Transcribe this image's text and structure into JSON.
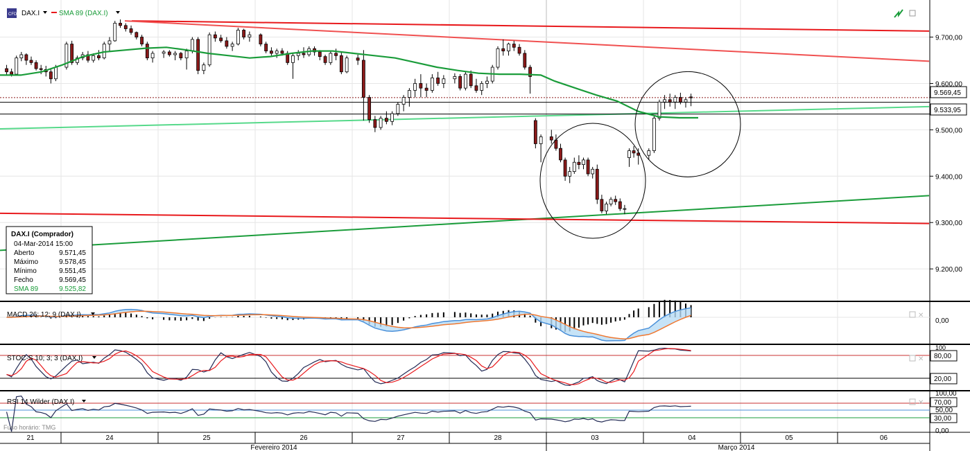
{
  "header": {
    "symbol": "DAX.I",
    "indicator": "SMA 89 (DAX.I)"
  },
  "price_panel": {
    "y_ticks": [
      "9.700,00",
      "9.600,00",
      "9.500,00",
      "9.400,00",
      "9.300,00",
      "9.200,00"
    ],
    "price_tag_current": "9.569,45",
    "price_tag_ref": "9.533,95"
  },
  "info_box": {
    "title": "DAX.I (Comprador)",
    "datetime": "04-Mar-2014 15:00",
    "rows": [
      {
        "label": "Aberto",
        "value": "9.571,45"
      },
      {
        "label": "Máximo",
        "value": "9.578,45"
      },
      {
        "label": "Mínimo",
        "value": "9.551,45"
      },
      {
        "label": "Fecho",
        "value": "9.569,45"
      },
      {
        "label": "SMA 89",
        "value": "9.525,82"
      }
    ],
    "sma_color": "#1a9c3a"
  },
  "macd_panel": {
    "label": "MACD 26; 12; 9 (DAX.I)",
    "tick": "0,00"
  },
  "stoch_panel": {
    "label": "STOC-S 10; 3; 3 (DAX.I)",
    "ticks": [
      "100",
      "80,00",
      "20,00"
    ]
  },
  "rsi_panel": {
    "label": "RSI 14 Wilder (DAX.I)",
    "ticks": [
      "100,00",
      "70,00",
      "50,00",
      "30,00",
      "0,00"
    ],
    "tz": "Fuso horário: TMG"
  },
  "x_axis": {
    "days": [
      "21",
      "24",
      "25",
      "26",
      "27",
      "28",
      "03",
      "04",
      "05",
      "06"
    ],
    "months": [
      "Fevereiro 2014",
      "Março 2014"
    ]
  },
  "colors": {
    "up": "#ffffff",
    "down": "#8b1a1a",
    "sma": "#1a9c3a",
    "res": "#e8191c",
    "sup": "#1a9c3a",
    "macd": "#4a90d9",
    "signal": "#f07830"
  },
  "chart_data": {
    "type": "candlestick",
    "symbol": "DAX.I",
    "ylim": [
      9130,
      9780
    ],
    "sessions": [
      "21",
      "24",
      "25",
      "26",
      "27",
      "28",
      "03",
      "04"
    ],
    "ohlc_hourly": [
      [
        9632,
        9640,
        9618,
        9625
      ],
      [
        9625,
        9632,
        9615,
        9620
      ],
      [
        9620,
        9660,
        9618,
        9655
      ],
      [
        9655,
        9668,
        9648,
        9662
      ],
      [
        9662,
        9665,
        9640,
        9650
      ],
      [
        9650,
        9658,
        9640,
        9645
      ],
      [
        9645,
        9650,
        9628,
        9632
      ],
      [
        9632,
        9640,
        9620,
        9630
      ],
      [
        9630,
        9638,
        9615,
        9625
      ],
      [
        9625,
        9630,
        9600,
        9610
      ],
      [
        9610,
        9640,
        9605,
        9635
      ],
      [
        9635,
        9690,
        9630,
        9685
      ],
      [
        9685,
        9692,
        9640,
        9645
      ],
      [
        9645,
        9660,
        9640,
        9655
      ],
      [
        9655,
        9668,
        9650,
        9662
      ],
      [
        9662,
        9670,
        9645,
        9650
      ],
      [
        9650,
        9665,
        9645,
        9660
      ],
      [
        9660,
        9672,
        9650,
        9655
      ],
      [
        9655,
        9690,
        9652,
        9685
      ],
      [
        9685,
        9700,
        9670,
        9692
      ],
      [
        9692,
        9735,
        9690,
        9730
      ],
      [
        9730,
        9738,
        9720,
        9725
      ],
      [
        9725,
        9730,
        9712,
        9718
      ],
      [
        9718,
        9725,
        9705,
        9710
      ],
      [
        9710,
        9712,
        9695,
        9700
      ],
      [
        9700,
        9705,
        9680,
        9685
      ],
      [
        9685,
        9690,
        9650,
        9655
      ],
      [
        9655,
        9670,
        9645,
        9665
      ],
      [
        9665,
        9672,
        9655,
        9668
      ],
      [
        9668,
        9672,
        9658,
        9662
      ],
      [
        9662,
        9670,
        9650,
        9665
      ],
      [
        9665,
        9668,
        9650,
        9655
      ],
      [
        9655,
        9675,
        9630,
        9670
      ],
      [
        9670,
        9700,
        9665,
        9695
      ],
      [
        9695,
        9700,
        9620,
        9628
      ],
      [
        9628,
        9645,
        9620,
        9640
      ],
      [
        9640,
        9710,
        9636,
        9705
      ],
      [
        9705,
        9712,
        9690,
        9698
      ],
      [
        9698,
        9705,
        9688,
        9692
      ],
      [
        9692,
        9700,
        9675,
        9680
      ],
      [
        9680,
        9690,
        9670,
        9685
      ],
      [
        9685,
        9720,
        9682,
        9715
      ],
      [
        9715,
        9718,
        9695,
        9700
      ],
      [
        9700,
        9712,
        9690,
        9705
      ],
      [
        9705,
        9708,
        9680,
        9685
      ],
      [
        9685,
        9690,
        9665,
        9670
      ],
      [
        9670,
        9678,
        9660,
        9665
      ],
      [
        9665,
        9675,
        9655,
        9670
      ],
      [
        9670,
        9676,
        9660,
        9665
      ],
      [
        9665,
        9670,
        9640,
        9645
      ],
      [
        9645,
        9665,
        9610,
        9660
      ],
      [
        9660,
        9672,
        9650,
        9665
      ],
      [
        9665,
        9678,
        9655,
        9662
      ],
      [
        9662,
        9680,
        9658,
        9675
      ],
      [
        9675,
        9680,
        9660,
        9668
      ],
      [
        9668,
        9672,
        9650,
        9658
      ],
      [
        9658,
        9662,
        9640,
        9645
      ],
      [
        9645,
        9670,
        9640,
        9665
      ],
      [
        9665,
        9675,
        9650,
        9660
      ],
      [
        9660,
        9668,
        9620,
        9625
      ],
      [
        9625,
        9660,
        9622,
        9655
      ],
      [
        9655,
        9662,
        9640,
        9650
      ],
      [
        9650,
        9672,
        9520,
        9570
      ],
      [
        9570,
        9575,
        9515,
        9522
      ],
      [
        9522,
        9530,
        9495,
        9505
      ],
      [
        9505,
        9530,
        9500,
        9525
      ],
      [
        9525,
        9540,
        9512,
        9518
      ],
      [
        9518,
        9540,
        9510,
        9535
      ],
      [
        9535,
        9560,
        9530,
        9555
      ],
      [
        9555,
        9575,
        9540,
        9570
      ],
      [
        9570,
        9590,
        9550,
        9585
      ],
      [
        9585,
        9610,
        9570,
        9600
      ],
      [
        9600,
        9620,
        9570,
        9590
      ],
      [
        9590,
        9600,
        9570,
        9585
      ],
      [
        9585,
        9620,
        9580,
        9612
      ],
      [
        9612,
        9625,
        9595,
        9600
      ],
      [
        9600,
        9618,
        9590,
        9610
      ],
      [
        9610,
        9622,
        9600,
        9615
      ],
      [
        9615,
        9620,
        9585,
        9590
      ],
      [
        9590,
        9625,
        9585,
        9620
      ],
      [
        9620,
        9628,
        9590,
        9595
      ],
      [
        9595,
        9610,
        9580,
        9585
      ],
      [
        9585,
        9605,
        9575,
        9600
      ],
      [
        9600,
        9615,
        9590,
        9605
      ],
      [
        9605,
        9640,
        9600,
        9635
      ],
      [
        9635,
        9680,
        9630,
        9675
      ],
      [
        9675,
        9695,
        9660,
        9670
      ],
      [
        9670,
        9688,
        9660,
        9685
      ],
      [
        9685,
        9692,
        9670,
        9678
      ],
      [
        9678,
        9685,
        9660,
        9665
      ],
      [
        9665,
        9672,
        9630,
        9635
      ],
      [
        9635,
        9640,
        9578,
        9615
      ],
      [
        9520,
        9525,
        9460,
        9470
      ],
      [
        9470,
        9490,
        9430,
        9485
      ],
      [
        9485,
        9500,
        9470,
        9478
      ],
      [
        9478,
        9490,
        9455,
        9460
      ],
      [
        9460,
        9470,
        9430,
        9435
      ],
      [
        9435,
        9440,
        9390,
        9400
      ],
      [
        9400,
        9420,
        9385,
        9410
      ],
      [
        9410,
        9440,
        9405,
        9430
      ],
      [
        9430,
        9445,
        9415,
        9425
      ],
      [
        9425,
        9440,
        9415,
        9435
      ],
      [
        9435,
        9440,
        9400,
        9405
      ],
      [
        9405,
        9420,
        9395,
        9415
      ],
      [
        9415,
        9425,
        9340,
        9350
      ],
      [
        9350,
        9360,
        9320,
        9325
      ],
      [
        9325,
        9345,
        9318,
        9340
      ],
      [
        9340,
        9355,
        9335,
        9350
      ],
      [
        9350,
        9358,
        9338,
        9345
      ],
      [
        9345,
        9352,
        9325,
        9330
      ],
      [
        9330,
        9338,
        9318,
        9330
      ],
      [
        9440,
        9460,
        9420,
        9455
      ],
      [
        9455,
        9465,
        9440,
        9450
      ],
      [
        9450,
        9460,
        9425,
        9445
      ],
      [
        9445,
        9460,
        9435,
        9455
      ],
      [
        9455,
        9530,
        9450,
        9525
      ],
      [
        9525,
        9565,
        9520,
        9560
      ],
      [
        9560,
        9575,
        9545,
        9565
      ],
      [
        9565,
        9578,
        9550,
        9560
      ],
      [
        9560,
        9575,
        9545,
        9570
      ],
      [
        9570,
        9580,
        9555,
        9560
      ],
      [
        9560,
        9570,
        9548,
        9565
      ],
      [
        9571,
        9578,
        9551,
        9569
      ]
    ],
    "sma89": [
      [
        0,
        9618
      ],
      [
        30,
        9618
      ],
      [
        60,
        9625
      ],
      [
        90,
        9640
      ],
      [
        120,
        9658
      ],
      [
        150,
        9668
      ],
      [
        180,
        9672
      ],
      [
        210,
        9676
      ],
      [
        240,
        9678
      ],
      [
        270,
        9672
      ],
      [
        300,
        9665
      ],
      [
        330,
        9660
      ],
      [
        360,
        9655
      ],
      [
        390,
        9658
      ],
      [
        420,
        9665
      ],
      [
        450,
        9670
      ],
      [
        480,
        9670
      ],
      [
        510,
        9665
      ],
      [
        540,
        9660
      ],
      [
        570,
        9655
      ],
      [
        600,
        9645
      ],
      [
        630,
        9635
      ],
      [
        660,
        9628
      ],
      [
        690,
        9622
      ],
      [
        720,
        9620
      ],
      [
        750,
        9620
      ],
      [
        780,
        9618
      ],
      [
        800,
        9605
      ],
      [
        830,
        9590
      ],
      [
        860,
        9575
      ],
      [
        890,
        9562
      ],
      [
        920,
        9540
      ],
      [
        950,
        9528
      ],
      [
        980,
        9526
      ],
      [
        1007,
        9526
      ]
    ],
    "trendlines": [
      {
        "kind": "resistance",
        "color": "#e8191c",
        "from": [
          190,
          9735
        ],
        "to": [
          1340,
          9713
        ]
      },
      {
        "kind": "resistance",
        "color": "#f05050",
        "from": [
          180,
          9735
        ],
        "to": [
          1340,
          9648
        ]
      },
      {
        "kind": "support",
        "color": "#56d98a",
        "from": [
          0,
          9502
        ],
        "to": [
          1340,
          9550
        ]
      },
      {
        "kind": "support",
        "color": "#1a9c3a",
        "from": [
          0,
          9240
        ],
        "to": [
          1340,
          9358
        ]
      },
      {
        "kind": "support",
        "color": "#e8191c",
        "from": [
          0,
          9320
        ],
        "to": [
          1340,
          9298
        ]
      }
    ],
    "ellipses": [
      {
        "center_x": 855,
        "center_price": 9390,
        "rx": 76,
        "ry": 83
      },
      {
        "center_x": 992,
        "center_price": 9512,
        "rx": 76,
        "ry": 76
      }
    ],
    "hlines": [
      9569.45,
      9533.95
    ],
    "grid": true
  }
}
